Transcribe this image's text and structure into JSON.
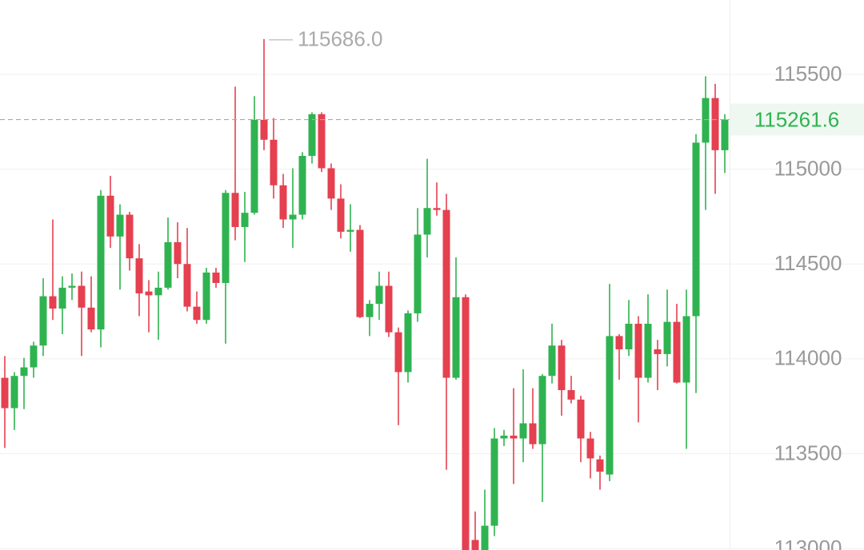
{
  "chart_data": {
    "type": "candlestick",
    "ylim": [
      112992,
      115892
    ],
    "yticks": [
      113000,
      113500,
      114000,
      114500,
      115000,
      115500
    ],
    "grid": true,
    "up_color": "#2fb350",
    "down_color": "#e5404f",
    "max_label": {
      "value": 115686,
      "label": "115686.0"
    },
    "last_price": 115261.6,
    "open": [
      113900,
      113740,
      113910,
      113955,
      114070,
      114330,
      114265,
      114375,
      114385,
      114270,
      114155,
      114860,
      114645,
      114760,
      114530,
      114355,
      114335,
      114375,
      114615,
      114500,
      114275,
      114205,
      114455,
      114400,
      114875,
      114695,
      114770,
      115260,
      115155,
      114915,
      114735,
      114760,
      115070,
      115290,
      115005,
      114845,
      114670,
      114680,
      114220,
      114290,
      114385,
      114140,
      113930,
      114240,
      114655,
      114795,
      114785,
      113900,
      114325,
      113045,
      112990,
      113120,
      113580,
      113595,
      113580,
      113660,
      113550,
      113910,
      114070,
      113835,
      113785,
      113580,
      113470,
      113390,
      114120,
      114050,
      114185,
      113900,
      114050,
      114025,
      114195,
      113875,
      114225,
      115140,
      115375,
      115100
    ],
    "high": [
      114015,
      113930,
      114005,
      114090,
      114425,
      114735,
      114435,
      114450,
      114460,
      114435,
      114890,
      114965,
      114815,
      114775,
      114605,
      114415,
      114460,
      114745,
      114720,
      114690,
      114355,
      114480,
      114480,
      114890,
      115435,
      114880,
      115385,
      115686,
      115270,
      114975,
      115005,
      115090,
      115300,
      115300,
      115030,
      114920,
      114815,
      114705,
      114310,
      114460,
      114460,
      114165,
      114255,
      114795,
      115055,
      114930,
      114870,
      114535,
      114340,
      113195,
      113310,
      113635,
      113625,
      113845,
      113945,
      113845,
      113920,
      114185,
      114100,
      113910,
      113805,
      113615,
      113490,
      114395,
      114130,
      114310,
      114225,
      114340,
      114100,
      114365,
      114290,
      114365,
      115185,
      115490,
      115450,
      115290
    ],
    "low": [
      113530,
      113625,
      113735,
      113900,
      114015,
      114205,
      114130,
      114310,
      114015,
      114140,
      114060,
      114585,
      114365,
      114465,
      114225,
      114140,
      114100,
      114365,
      114425,
      114250,
      114185,
      114185,
      114375,
      114080,
      114625,
      114510,
      114760,
      115100,
      114845,
      114690,
      114585,
      114735,
      115030,
      114985,
      114785,
      114635,
      114565,
      114215,
      114120,
      114205,
      114115,
      113650,
      113875,
      114195,
      114535,
      114755,
      113415,
      113890,
      112940,
      112940,
      112950,
      113065,
      113540,
      113340,
      113455,
      113525,
      113245,
      113870,
      113700,
      113765,
      113455,
      113370,
      113310,
      113355,
      113890,
      114015,
      113665,
      113875,
      113835,
      113960,
      113870,
      113525,
      113820,
      114785,
      114870,
      114980
    ],
    "close": [
      113740,
      113910,
      113955,
      114070,
      114330,
      114265,
      114375,
      114385,
      114270,
      114155,
      114860,
      114645,
      114760,
      114530,
      114345,
      114335,
      114375,
      114615,
      114500,
      114275,
      114205,
      114455,
      114400,
      114875,
      114695,
      114770,
      115260,
      115155,
      114915,
      114735,
      114760,
      115070,
      115290,
      115005,
      114845,
      114670,
      114680,
      114220,
      114290,
      114385,
      114140,
      113930,
      114240,
      114655,
      114795,
      114785,
      113900,
      114325,
      112975,
      112985,
      113120,
      113580,
      113595,
      113580,
      113660,
      113550,
      113910,
      114070,
      113835,
      113785,
      113580,
      113475,
      113405,
      114120,
      114050,
      114185,
      113900,
      114185,
      114025,
      114195,
      113875,
      114225,
      115140,
      115375,
      115100,
      115261.6
    ]
  }
}
